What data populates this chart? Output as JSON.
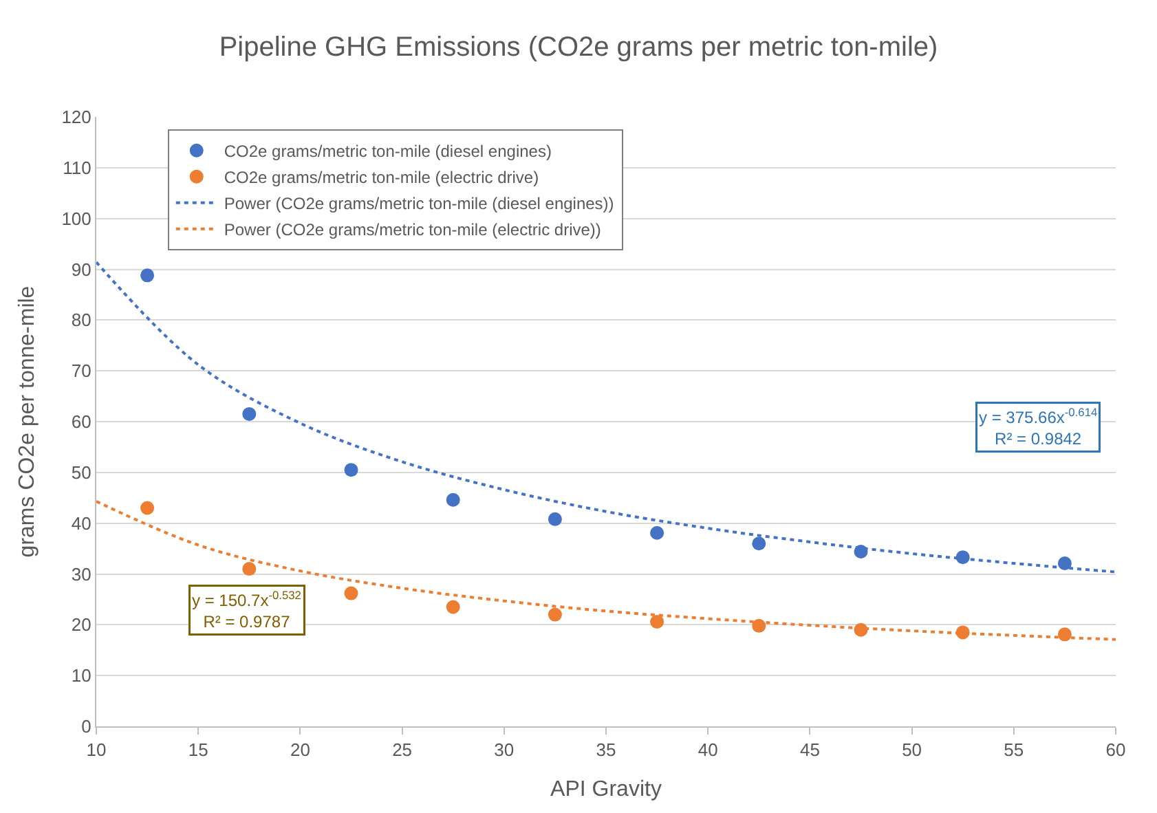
{
  "chart_data": {
    "type": "scatter",
    "title": "Pipeline GHG Emissions (CO2e grams per metric ton-mile)",
    "xlabel": "API Gravity",
    "ylabel": "grams CO2e per tonne-mile",
    "xlim": [
      10,
      60
    ],
    "xticks": [
      10,
      15,
      20,
      25,
      30,
      35,
      40,
      45,
      50,
      55,
      60
    ],
    "ylim": [
      0,
      120
    ],
    "yticks": [
      0,
      10,
      20,
      30,
      40,
      50,
      60,
      70,
      80,
      90,
      100,
      110,
      120
    ],
    "grid": "y",
    "legend": "top",
    "series": [
      {
        "name": "CO2e grams/metric ton-mile (diesel engines)",
        "marker": "circle",
        "color": "#4472c4",
        "x": [
          12.5,
          17.5,
          22.5,
          27.5,
          32.5,
          37.5,
          42.5,
          47.5,
          52.5,
          57.5
        ],
        "values": [
          88.8,
          61.5,
          50.5,
          44.6,
          40.8,
          38.1,
          36.0,
          34.4,
          33.3,
          32.1
        ]
      },
      {
        "name": "CO2e grams/metric ton-mile (electric drive)",
        "marker": "circle",
        "color": "#ed7d31",
        "x": [
          12.5,
          17.5,
          22.5,
          27.5,
          32.5,
          37.5,
          42.5,
          47.5,
          52.5,
          57.5
        ],
        "values": [
          43.0,
          31.0,
          26.2,
          23.5,
          22.0,
          20.6,
          19.8,
          19.0,
          18.5,
          18.1
        ]
      },
      {
        "name": "Power (CO2e grams/metric ton-mile (diesel engines))",
        "type": "line",
        "marker": "none",
        "line_style": "dotted",
        "color": "#4472c4",
        "x": [
          10,
          15,
          20,
          25,
          30,
          35,
          40,
          45,
          50,
          55,
          60
        ],
        "values": [
          91.4,
          71.2,
          59.7,
          52.1,
          46.6,
          42.3,
          39.0,
          36.3,
          34.0,
          32.1,
          30.4
        ]
      },
      {
        "name": "Power (CO2e grams/metric ton-mile (electric drive))",
        "type": "line",
        "marker": "none",
        "line_style": "dotted",
        "color": "#ed7d31",
        "x": [
          10,
          15,
          20,
          25,
          30,
          35,
          40,
          45,
          50,
          55,
          60
        ],
        "values": [
          44.3,
          35.7,
          30.6,
          27.2,
          24.7,
          22.7,
          21.2,
          19.9,
          18.8,
          17.9,
          17.1
        ]
      }
    ],
    "annotations": [
      "y = 375.66x$^{-0.614}$\nR² = 0.9842",
      "y = 150.7x$^{-0.532}$\nR² = 0.9787"
    ]
  }
}
